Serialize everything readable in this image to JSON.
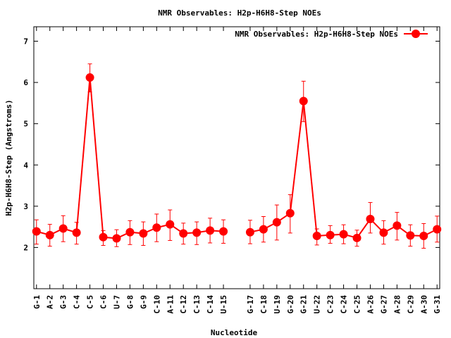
{
  "chart_data": {
    "type": "line",
    "title": "NMR Observables: H2p-H6H8-Step NOEs",
    "xlabel": "Nucleotide",
    "ylabel": "H2p-H6H8-Step (Angstroms)",
    "ylim": [
      1,
      7.35
    ],
    "yticks": [
      2,
      3,
      4,
      5,
      6,
      7
    ],
    "categories": [
      "G-1",
      "A-2",
      "G-3",
      "C-4",
      "C-5",
      "C-6",
      "U-7",
      "G-8",
      "G-9",
      "C-10",
      "A-11",
      "C-12",
      "C-13",
      "C-14",
      "U-15",
      "G-17",
      "C-18",
      "U-19",
      "G-20",
      "G-21",
      "U-22",
      "C-23",
      "C-24",
      "C-25",
      "A-26",
      "G-27",
      "A-28",
      "C-29",
      "A-30",
      "G-31"
    ],
    "x_positions": [
      1,
      2,
      3,
      4,
      5,
      6,
      7,
      8,
      9,
      10,
      11,
      12,
      13,
      14,
      15,
      17,
      18,
      19,
      20,
      21,
      22,
      23,
      24,
      25,
      26,
      27,
      28,
      29,
      30,
      31
    ],
    "xlim": [
      0.8,
      31.2
    ],
    "series": [
      {
        "name": "NMR Observables: H2p-H6H8-Step NOEs",
        "segments": [
          [
            0,
            14
          ],
          [
            15,
            29
          ]
        ],
        "values": [
          2.39,
          2.3,
          2.46,
          2.36,
          6.12,
          2.25,
          2.22,
          2.37,
          2.34,
          2.48,
          2.56,
          2.34,
          2.36,
          2.41,
          2.39,
          2.37,
          2.44,
          2.61,
          2.83,
          5.55,
          2.28,
          2.3,
          2.32,
          2.23,
          2.69,
          2.36,
          2.53,
          2.29,
          2.28,
          2.44
        ],
        "err_low": [
          2.08,
          2.03,
          2.14,
          2.08,
          5.77,
          2.05,
          2.02,
          2.07,
          2.05,
          2.14,
          2.17,
          2.08,
          2.07,
          2.11,
          2.1,
          2.09,
          2.13,
          2.18,
          2.35,
          5.05,
          2.06,
          2.1,
          2.09,
          2.03,
          2.35,
          2.08,
          2.18,
          2.03,
          1.98,
          2.13
        ],
        "err_high": [
          2.67,
          2.56,
          2.77,
          2.61,
          6.45,
          2.41,
          2.43,
          2.65,
          2.62,
          2.81,
          2.91,
          2.59,
          2.62,
          2.71,
          2.67,
          2.66,
          2.75,
          3.03,
          3.28,
          6.03,
          2.45,
          2.53,
          2.55,
          2.42,
          3.09,
          2.65,
          2.85,
          2.55,
          2.58,
          2.76
        ]
      }
    ],
    "color": "#ff0000",
    "grid": false,
    "legend_position": "top-right"
  }
}
